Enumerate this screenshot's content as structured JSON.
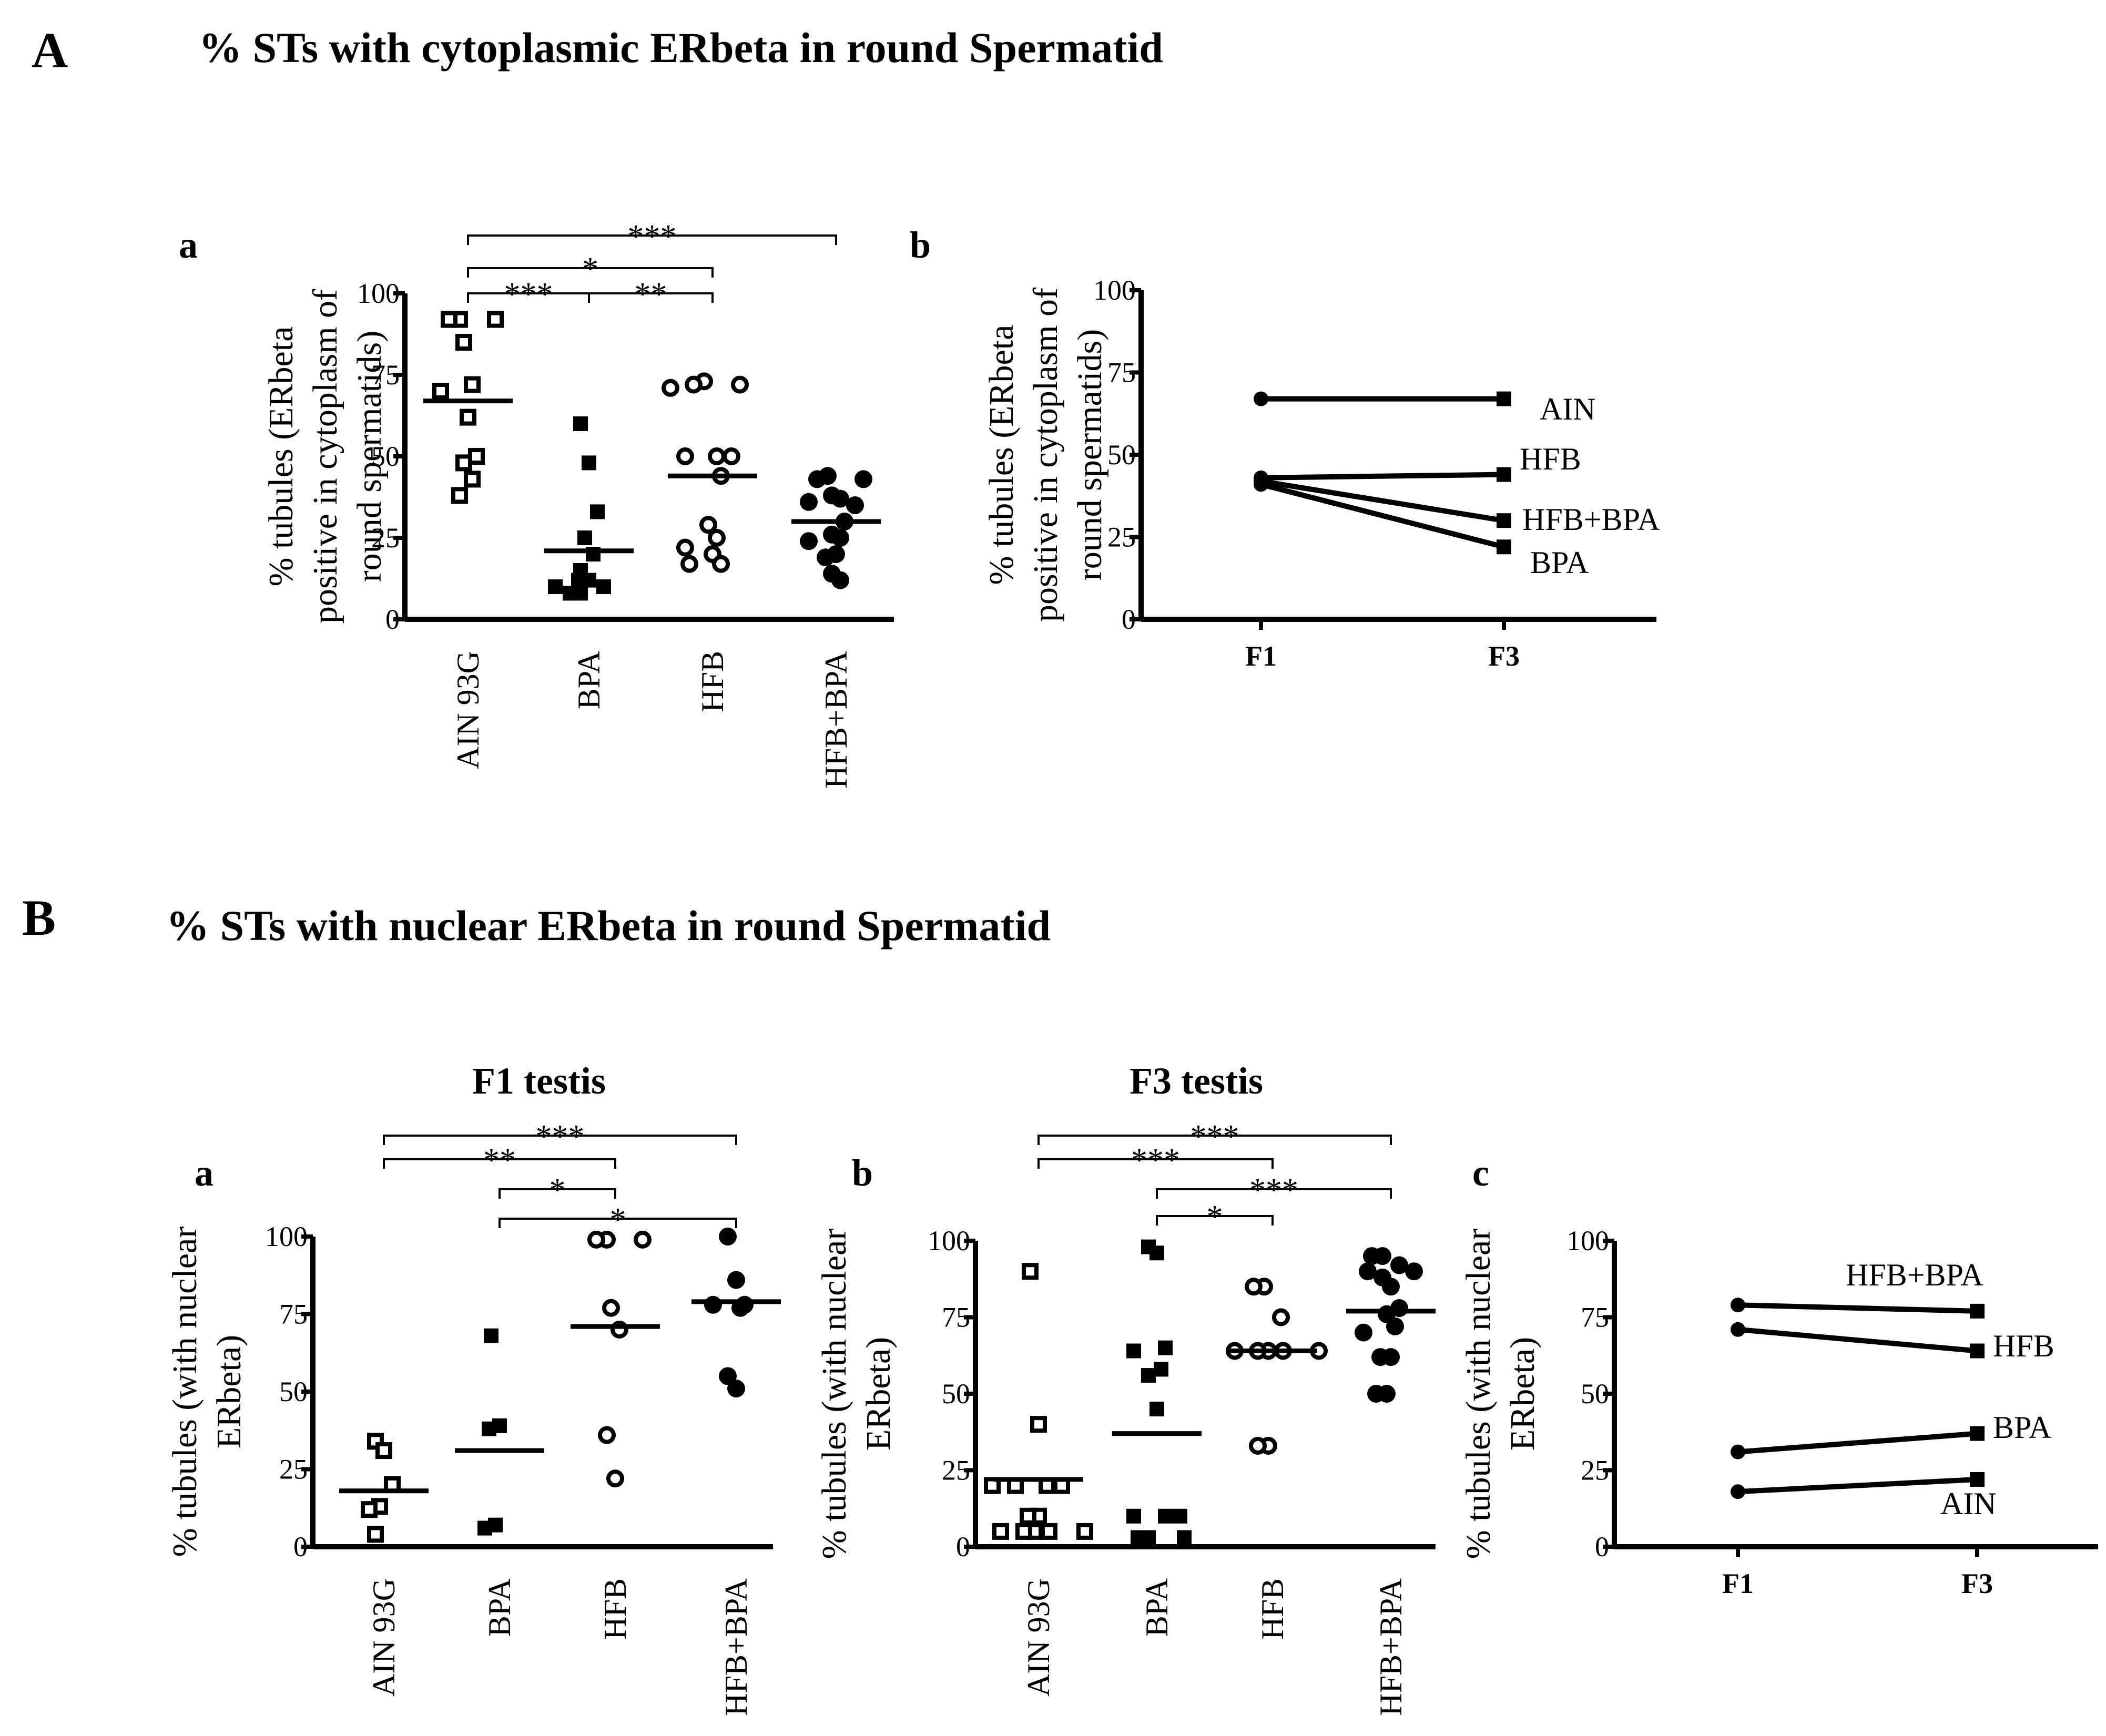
{
  "figure": {
    "panel_A": "A",
    "title_A": "% STs with cytoplasmic ERbeta in round Spermatid",
    "panel_B": "B",
    "title_B": "% STs with nuclear ERbeta in round Spermatid"
  },
  "chart_data": [
    {
      "id": "Aa",
      "type": "scatter",
      "panel_label": "a",
      "subtitle": "",
      "ylabel_lines": [
        "% tubules (ERbeta",
        "positive in cytoplasm of",
        "round spermatids)"
      ],
      "ylim": [
        0,
        100
      ],
      "yticks": [
        0,
        25,
        50,
        75,
        100
      ],
      "categories": [
        "AIN 93G",
        "BPA",
        "HFB",
        "HFB+BPA"
      ],
      "markers": [
        "open-square",
        "filled-square",
        "open-circle",
        "filled-circle"
      ],
      "points": [
        [
          92,
          92,
          92,
          85,
          72,
          70,
          62,
          50,
          48,
          43,
          38
        ],
        [
          60,
          48,
          33,
          25,
          20,
          15,
          12,
          12,
          10,
          10,
          8,
          8
        ],
        [
          73,
          72,
          72,
          71,
          50,
          50,
          50,
          44,
          29,
          25,
          22,
          20,
          17,
          17
        ],
        [
          44,
          43,
          43,
          38,
          37,
          36,
          35,
          30,
          26,
          25,
          24,
          20,
          19,
          14,
          12
        ]
      ],
      "means": [
        67,
        21,
        44,
        30
      ],
      "significance": [
        {
          "from": 0,
          "to": 3,
          "label": "***"
        },
        {
          "from": 0,
          "to": 2,
          "label": "*"
        },
        {
          "from": 0,
          "to": 1,
          "label": "***"
        },
        {
          "from": 1,
          "to": 2,
          "label": "**"
        }
      ]
    },
    {
      "id": "Ab",
      "type": "line",
      "panel_label": "b",
      "ylabel_lines": [
        "% tubules (ERbeta",
        "positive in cytoplasm of",
        "round spermatids)"
      ],
      "ylim": [
        0,
        100
      ],
      "yticks": [
        0,
        25,
        50,
        75,
        100
      ],
      "x": [
        "F1",
        "F3"
      ],
      "series": [
        {
          "name": "AIN",
          "values": [
            67,
            67
          ]
        },
        {
          "name": "HFB",
          "values": [
            43,
            44
          ]
        },
        {
          "name": "HFB+BPA",
          "values": [
            42,
            30
          ]
        },
        {
          "name": "BPA",
          "values": [
            41,
            22
          ]
        }
      ]
    },
    {
      "id": "Ba",
      "type": "scatter",
      "panel_label": "a",
      "subtitle": "F1 testis",
      "ylabel_lines": [
        "% tubules (with nuclear",
        "ERbeta)"
      ],
      "ylim": [
        0,
        100
      ],
      "yticks": [
        0,
        25,
        50,
        75,
        100
      ],
      "categories": [
        "AIN 93G",
        "BPA",
        "HFB",
        "HFB+BPA"
      ],
      "markers": [
        "open-square",
        "filled-square",
        "open-circle",
        "filled-circle"
      ],
      "points": [
        [
          34,
          31,
          20,
          13,
          12,
          4
        ],
        [
          68,
          39,
          38,
          7,
          6
        ],
        [
          99,
          99,
          99,
          77,
          70,
          36,
          22
        ],
        [
          100,
          86,
          78,
          78,
          77,
          55,
          51
        ]
      ],
      "means": [
        18,
        31,
        71,
        79
      ],
      "significance": [
        {
          "from": 0,
          "to": 3,
          "label": "***"
        },
        {
          "from": 0,
          "to": 2,
          "label": "**"
        },
        {
          "from": 1,
          "to": 2,
          "label": "*"
        },
        {
          "from": 1,
          "to": 3,
          "label": "*"
        }
      ]
    },
    {
      "id": "Bb",
      "type": "scatter",
      "panel_label": "b",
      "subtitle": "F3 testis",
      "ylabel_lines": [
        "% tubules (with nuclear",
        "ERbeta)"
      ],
      "ylim": [
        0,
        100
      ],
      "yticks": [
        0,
        25,
        50,
        75,
        100
      ],
      "categories": [
        "AIN 93G",
        "BPA",
        "HFB",
        "HFB+BPA"
      ],
      "markers": [
        "open-square",
        "filled-square",
        "open-circle",
        "filled-circle"
      ],
      "points": [
        [
          90,
          40,
          20,
          20,
          20,
          20,
          10,
          10,
          5,
          5,
          5,
          5,
          5
        ],
        [
          98,
          96,
          65,
          64,
          58,
          56,
          45,
          10,
          10,
          10,
          3,
          3,
          3
        ],
        [
          85,
          85,
          75,
          64,
          64,
          64,
          64,
          64,
          33,
          33
        ],
        [
          95,
          95,
          92,
          90,
          90,
          88,
          85,
          78,
          76,
          72,
          70,
          62,
          62,
          50,
          50
        ]
      ],
      "means": [
        22,
        37,
        64,
        77
      ],
      "significance": [
        {
          "from": 0,
          "to": 3,
          "label": "***"
        },
        {
          "from": 0,
          "to": 2,
          "label": "***"
        },
        {
          "from": 1,
          "to": 3,
          "label": "***"
        },
        {
          "from": 1,
          "to": 2,
          "label": "*"
        }
      ]
    },
    {
      "id": "Bc",
      "type": "line",
      "panel_label": "c",
      "ylabel_lines": [
        "% tubules (with nuclear",
        "ERbeta)"
      ],
      "ylim": [
        0,
        100
      ],
      "yticks": [
        0,
        25,
        50,
        75,
        100
      ],
      "x": [
        "F1",
        "F3"
      ],
      "series": [
        {
          "name": "HFB+BPA",
          "values": [
            79,
            77
          ]
        },
        {
          "name": "HFB",
          "values": [
            71,
            64
          ]
        },
        {
          "name": "BPA",
          "values": [
            31,
            37
          ]
        },
        {
          "name": "AIN",
          "values": [
            18,
            22
          ]
        }
      ]
    }
  ]
}
